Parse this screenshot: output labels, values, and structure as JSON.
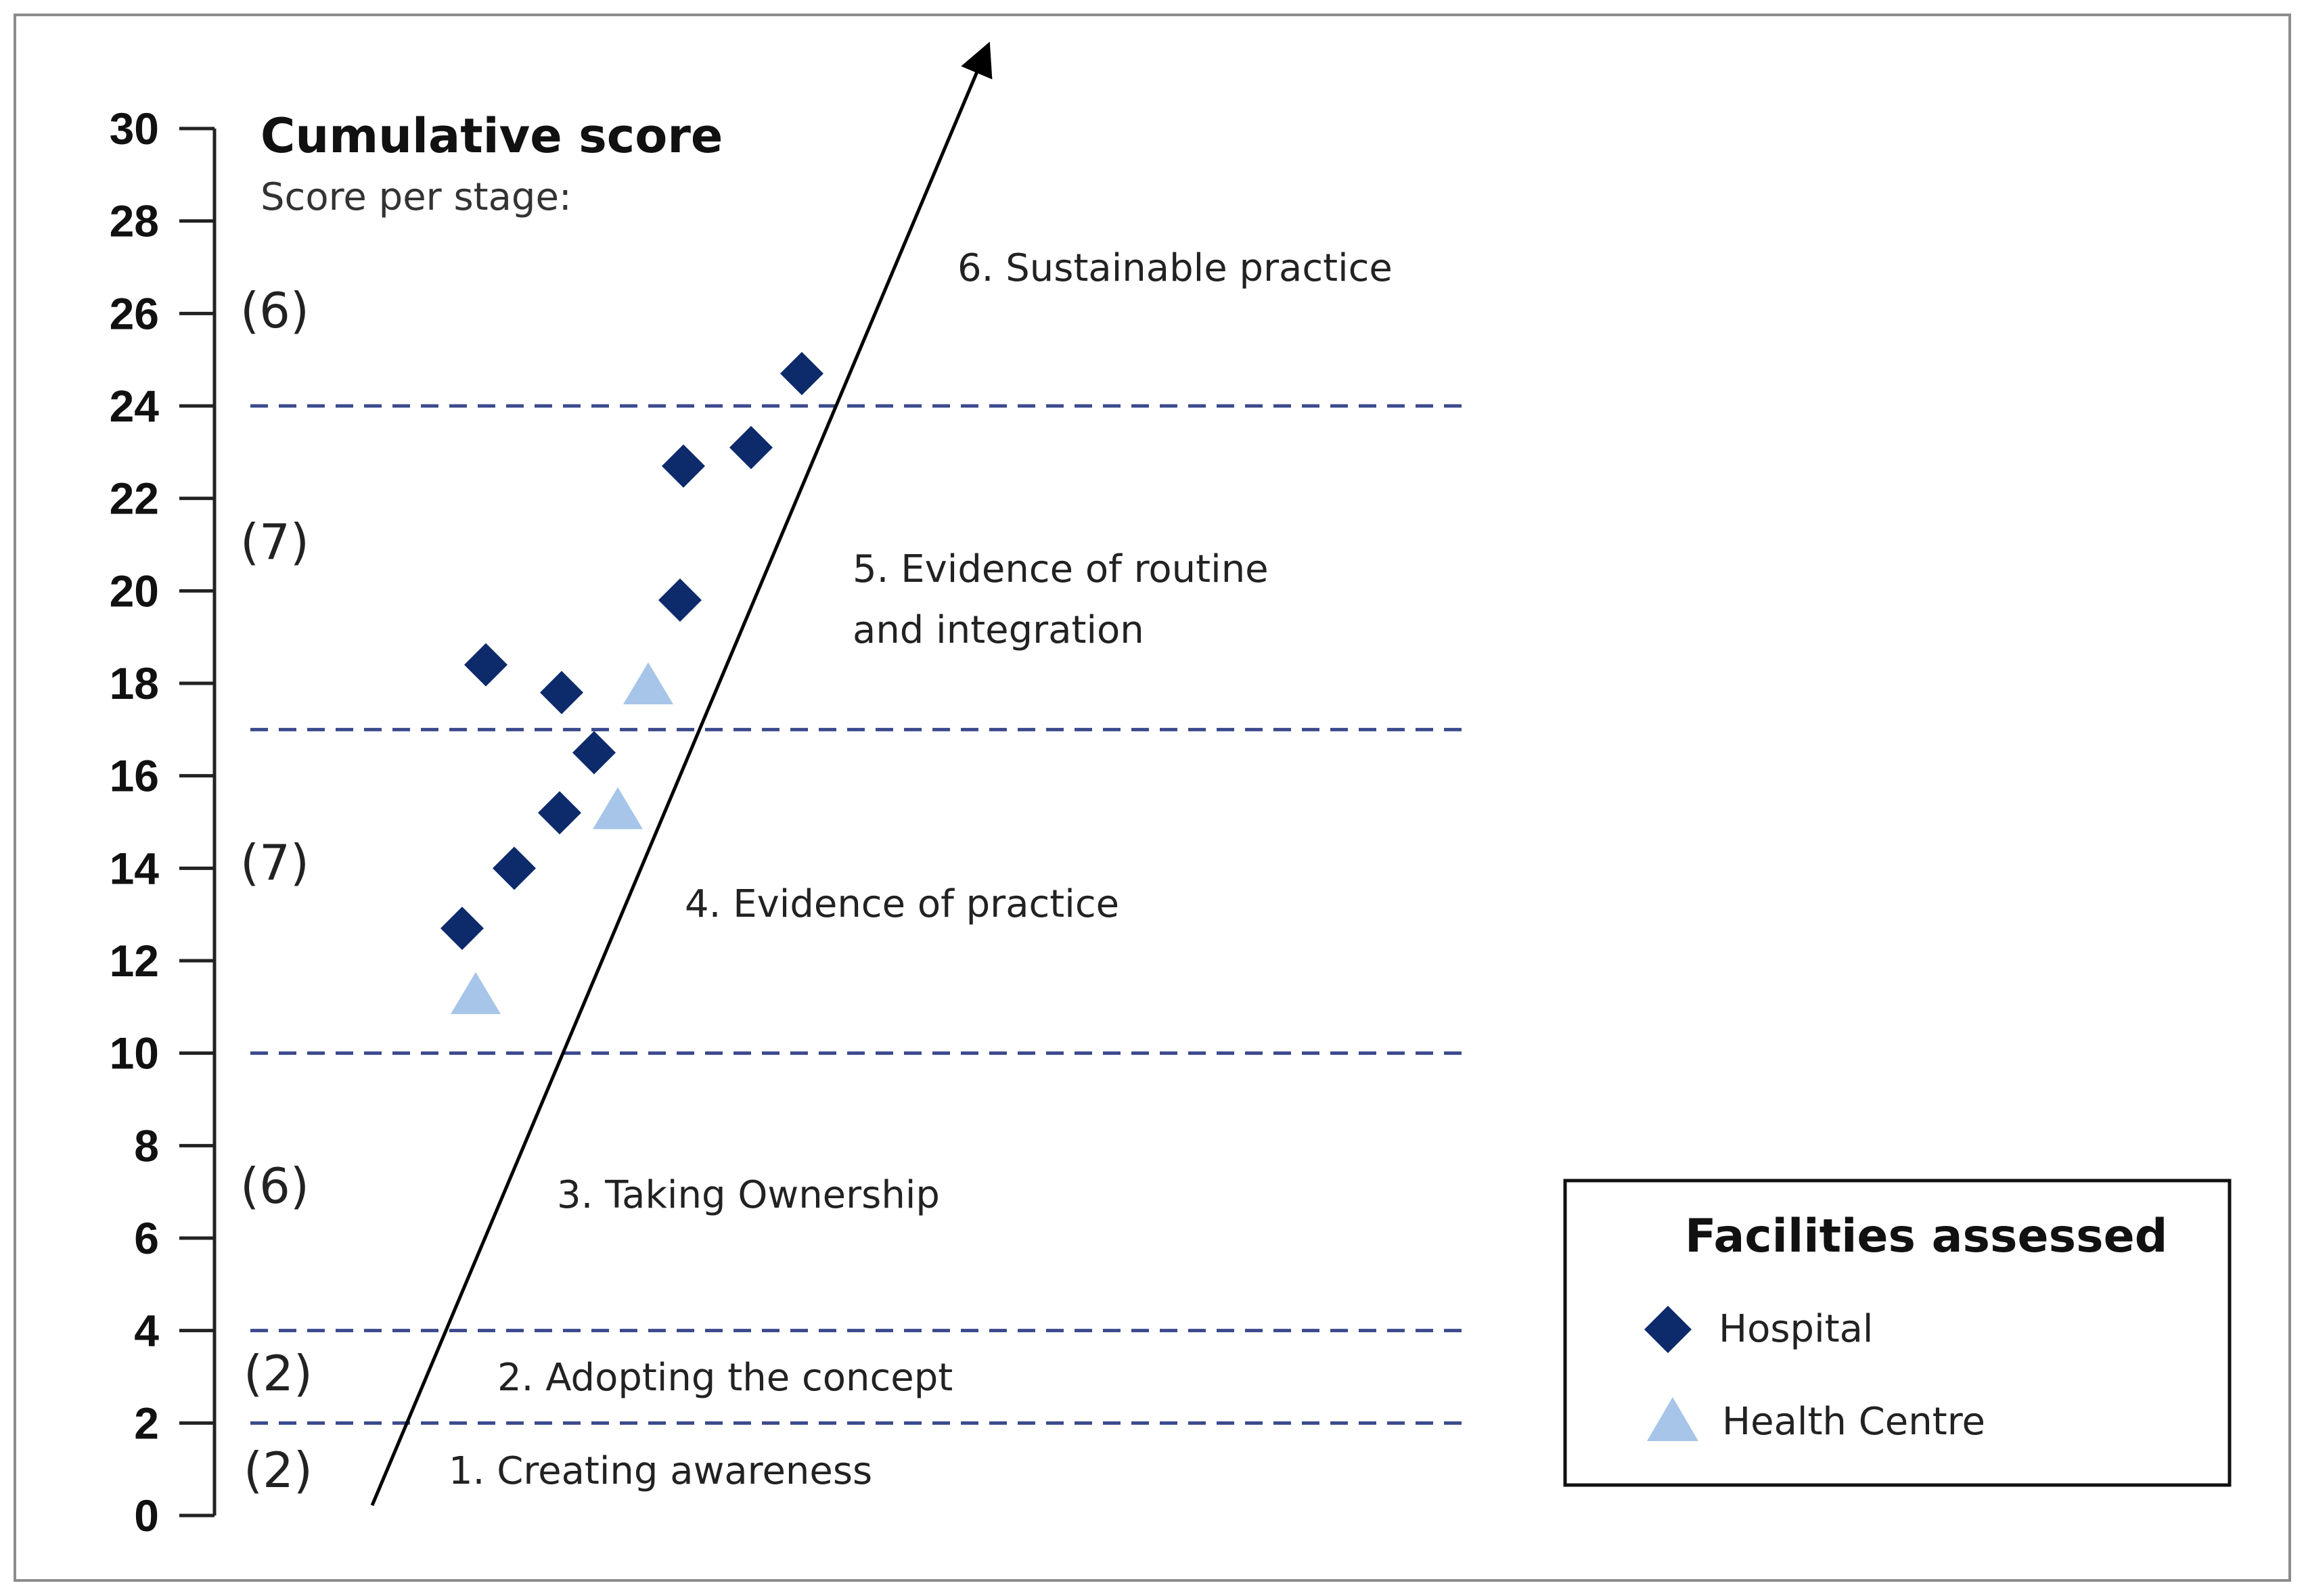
{
  "chart_data": {
    "type": "scatter",
    "title": "Cumulative score",
    "subtitle": "Score per stage:",
    "ylim": [
      0,
      30
    ],
    "yticks": [
      0,
      2,
      4,
      6,
      8,
      10,
      12,
      14,
      16,
      18,
      20,
      22,
      24,
      26,
      28,
      30
    ],
    "stage_thresholds": [
      2,
      4,
      10,
      17,
      24
    ],
    "stages": [
      {
        "label": "1. Creating awareness",
        "score": "(2)",
        "y_mid": 1.0
      },
      {
        "label": "2. Adopting the concept",
        "score": "(2)",
        "y_mid": 3.0
      },
      {
        "label": "3. Taking Ownership",
        "score": "(6)",
        "y_mid": 7.0
      },
      {
        "label": "4. Evidence of practice",
        "score": "(7)",
        "y_mid": 13.7
      },
      {
        "label_lines": [
          "5. Evidence of routine",
          "and integration"
        ],
        "score": "(7)",
        "y_mid": 21.0
      },
      {
        "label": "6. Sustainable practice",
        "score": "(6)",
        "y_mid": 26.0
      }
    ],
    "series": [
      {
        "name": "Hospital",
        "marker": "diamond",
        "color": "#0d2a6b",
        "points": [
          {
            "y": 12.7
          },
          {
            "y": 14.0
          },
          {
            "y": 15.2
          },
          {
            "y": 16.5
          },
          {
            "y": 17.8
          },
          {
            "y": 18.4
          },
          {
            "y": 19.8
          },
          {
            "y": 22.7
          },
          {
            "y": 23.1
          },
          {
            "y": 24.7
          }
        ]
      },
      {
        "name": "Health Centre",
        "marker": "triangle",
        "color": "#a7c5e8",
        "points": [
          {
            "y": 11.3
          },
          {
            "y": 15.3
          },
          {
            "y": 18.0
          }
        ]
      }
    ],
    "legend": {
      "title": "Facilities assessed",
      "position": "bottom-right"
    }
  }
}
